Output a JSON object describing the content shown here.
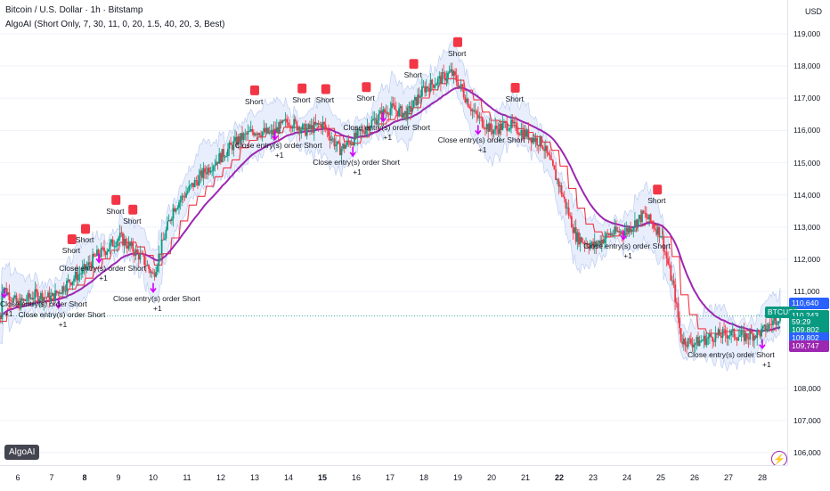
{
  "header": {
    "title": "Bitcoin / U.S. Dollar · 1h · Bitstamp",
    "indicator": "AlgoAI (Short Only, 7, 30, 11, 0, 20, 1.5, 40, 20, 3, Best)",
    "currency": "USD"
  },
  "price_axis": {
    "ticks": [
      "119,000",
      "118,000",
      "117,000",
      "116,000",
      "115,000",
      "114,000",
      "113,000",
      "112,000",
      "111,000",
      "108,000",
      "107,000",
      "106,000"
    ],
    "ticks_values": [
      119000,
      118000,
      117000,
      116000,
      115000,
      114000,
      113000,
      112000,
      111000,
      108000,
      107000,
      106000
    ],
    "tags": [
      {
        "text": "110,640",
        "color": "#2962ff",
        "price": 110640
      },
      {
        "text": "BTCUSD",
        "color": "#089981",
        "price": 110360
      },
      {
        "text": "110,243",
        "color": "#089981",
        "price": 110243
      },
      {
        "text": "59:29",
        "color": "#089981",
        "price": 110050
      },
      {
        "text": "109,802",
        "color": "#089981",
        "price": 109802
      },
      {
        "text": "109,802",
        "color": "#2962ff",
        "price": 109550
      },
      {
        "text": "109,747",
        "color": "#9c27b0",
        "price": 109300
      }
    ]
  },
  "time_axis": {
    "labels": [
      {
        "text": "6",
        "bold": false,
        "x": 20
      },
      {
        "text": "7",
        "bold": false,
        "x": 58
      },
      {
        "text": "8",
        "bold": true,
        "x": 95
      },
      {
        "text": "9",
        "bold": false,
        "x": 133
      },
      {
        "text": "10",
        "bold": false,
        "x": 172
      },
      {
        "text": "11",
        "bold": false,
        "x": 210
      },
      {
        "text": "12",
        "bold": false,
        "x": 248
      },
      {
        "text": "13",
        "bold": false,
        "x": 286
      },
      {
        "text": "14",
        "bold": false,
        "x": 324
      },
      {
        "text": "15",
        "bold": true,
        "x": 362
      },
      {
        "text": "16",
        "bold": false,
        "x": 400
      },
      {
        "text": "17",
        "bold": false,
        "x": 438
      },
      {
        "text": "18",
        "bold": false,
        "x": 476
      },
      {
        "text": "19",
        "bold": false,
        "x": 514
      },
      {
        "text": "20",
        "bold": false,
        "x": 552
      },
      {
        "text": "21",
        "bold": false,
        "x": 590
      },
      {
        "text": "22",
        "bold": true,
        "x": 628
      },
      {
        "text": "23",
        "bold": false,
        "x": 666
      },
      {
        "text": "24",
        "bold": false,
        "x": 704
      },
      {
        "text": "25",
        "bold": false,
        "x": 742
      },
      {
        "text": "26",
        "bold": false,
        "x": 780
      },
      {
        "text": "27",
        "bold": false,
        "x": 818
      },
      {
        "text": "28",
        "bold": false,
        "x": 856
      }
    ]
  },
  "badge": "AlgoAI",
  "icons": {
    "bolt": "lightning-icon"
  },
  "annotations": {
    "short": "Short",
    "close": "Close entry(s) order Short",
    "plus": "+1",
    "one": "1"
  },
  "colors": {
    "up": "#089981",
    "down": "#f23645",
    "band": "#dbe5f9",
    "avg": "#9c27b0",
    "stop": "#f23645"
  },
  "chart_data": {
    "type": "candlestick",
    "symbol": "BTCUSD",
    "timeframe": "1h",
    "x_range_days": [
      "6",
      "28"
    ],
    "ylim": [
      105800,
      119500
    ],
    "last_price": 110243,
    "approx_close_path": [
      [
        5.5,
        111200
      ],
      [
        6,
        110600
      ],
      [
        6.5,
        110900
      ],
      [
        7,
        110800
      ],
      [
        7.5,
        111300
      ],
      [
        8,
        111700
      ],
      [
        8.3,
        112100
      ],
      [
        8.6,
        112300
      ],
      [
        9,
        112700
      ],
      [
        9.3,
        112400
      ],
      [
        9.7,
        112000
      ],
      [
        10,
        111500
      ],
      [
        10.3,
        112600
      ],
      [
        10.6,
        113600
      ],
      [
        11,
        114100
      ],
      [
        11.5,
        114700
      ],
      [
        12,
        115200
      ],
      [
        12.5,
        115700
      ],
      [
        13,
        116000
      ],
      [
        13.5,
        115900
      ],
      [
        14,
        116300
      ],
      [
        14.5,
        116000
      ],
      [
        15,
        116200
      ],
      [
        15.5,
        115400
      ],
      [
        16,
        115800
      ],
      [
        16.5,
        116300
      ],
      [
        17,
        116700
      ],
      [
        17.5,
        116500
      ],
      [
        18,
        117300
      ],
      [
        18.5,
        117600
      ],
      [
        18.8,
        117800
      ],
      [
        19,
        117500
      ],
      [
        19.5,
        116500
      ],
      [
        20,
        116000
      ],
      [
        20.5,
        116200
      ],
      [
        21,
        115900
      ],
      [
        21.5,
        115600
      ],
      [
        22,
        114300
      ],
      [
        22.5,
        112700
      ],
      [
        23,
        112400
      ],
      [
        23.5,
        112800
      ],
      [
        24,
        112900
      ],
      [
        24.5,
        113400
      ],
      [
        25,
        112800
      ],
      [
        25.4,
        111000
      ],
      [
        25.6,
        109500
      ],
      [
        26,
        109400
      ],
      [
        26.5,
        109600
      ],
      [
        27,
        109700
      ],
      [
        27.5,
        109600
      ],
      [
        28,
        109750
      ],
      [
        28.5,
        110243
      ]
    ]
  }
}
